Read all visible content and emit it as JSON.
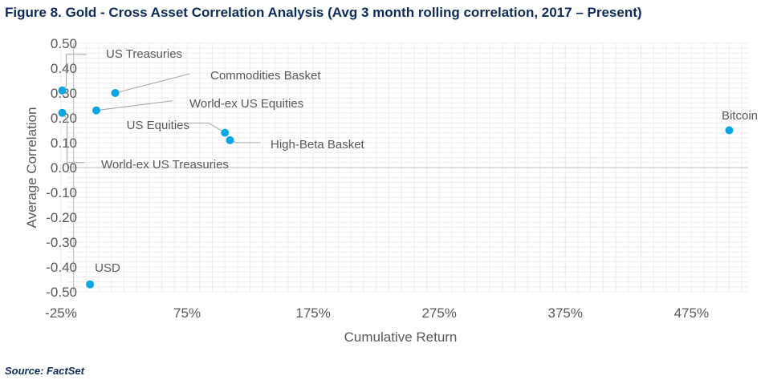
{
  "figure": {
    "title": "Figure 8. Gold - Cross Asset Correlation Analysis (Avg 3 month rolling correlation, 2017 – Present)",
    "source": "Source: FactSet"
  },
  "colors": {
    "title": "#0d2a5c",
    "point": "#0aa5e3",
    "axis_text": "#595959",
    "grid": "#ececec",
    "zero_axis": "#bfbfbf",
    "leader": "#a6a6a6"
  },
  "chart_data": {
    "type": "scatter",
    "title": "",
    "xlabel": "Cumulative Return",
    "ylabel": "Average Correlation",
    "xlim": [
      -0.25,
      5.2
    ],
    "ylim": [
      -0.5,
      0.5
    ],
    "x_ticks": [
      -0.25,
      0.75,
      1.75,
      2.75,
      3.75,
      4.75
    ],
    "x_tick_labels": [
      "-25%",
      "75%",
      "175%",
      "275%",
      "375%",
      "475%"
    ],
    "y_ticks": [
      0.5,
      0.4,
      0.3,
      0.2,
      0.1,
      0.0,
      -0.1,
      -0.2,
      -0.3,
      -0.4,
      -0.5
    ],
    "y_tick_labels": [
      "0.50",
      "0.40",
      "0.30",
      "0.20",
      "0.10",
      "0.00",
      "-0.10",
      "-0.20",
      "-0.30",
      "-0.40",
      "-0.50"
    ],
    "grid": true,
    "legend": "none",
    "points": [
      {
        "label": "US Treasuries",
        "x": -0.24,
        "y": 0.31
      },
      {
        "label": "Commodities Basket",
        "x": 0.18,
        "y": 0.3
      },
      {
        "label": "World-ex US Equities",
        "x": 0.03,
        "y": 0.23
      },
      {
        "label": "World-ex US Treasuries",
        "x": -0.24,
        "y": 0.22
      },
      {
        "label": "US Equities",
        "x": 1.05,
        "y": 0.14
      },
      {
        "label": "High-Beta Basket",
        "x": 1.09,
        "y": 0.11
      },
      {
        "label": "Bitcoin",
        "x": 5.05,
        "y": 0.15
      },
      {
        "label": "USD",
        "x": -0.02,
        "y": -0.47
      }
    ]
  }
}
